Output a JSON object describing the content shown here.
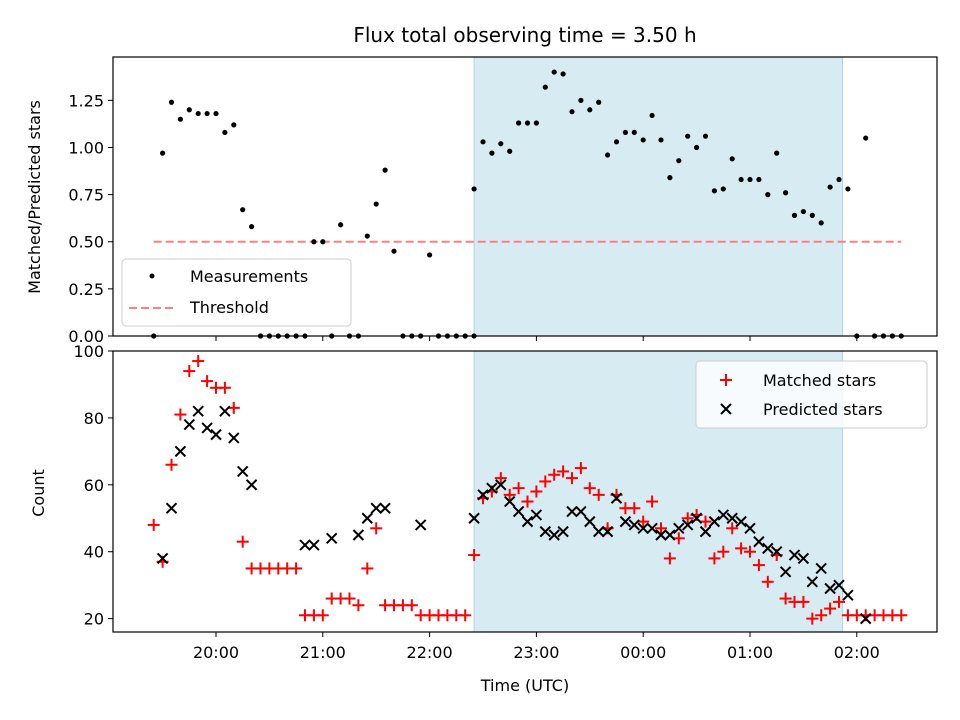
{
  "chart_data": [
    {
      "type": "scatter",
      "title": "Flux total observing time = 3.50 h",
      "xlabel": "",
      "ylabel": "Matched/Predicted stars",
      "ylim": [
        0,
        1.48
      ],
      "yticks": [
        "0.00",
        "0.25",
        "0.50",
        "0.75",
        "1.00",
        "1.25"
      ],
      "xticks_hidden": true,
      "highlight_span": {
        "start": "22:25",
        "end": "01:52",
        "color": "#add8e6"
      },
      "threshold": {
        "name": "Threshold",
        "value": 0.5,
        "color": "#ff7f7f",
        "from": "19:25",
        "to": "02:25"
      },
      "legend": {
        "placement": "lower-left",
        "entries": [
          "Measurements",
          "Threshold"
        ]
      },
      "series": [
        {
          "name": "Measurements",
          "color": "#000000",
          "points": [
            [
              "19:25",
              0.0
            ],
            [
              "19:30",
              0.97
            ],
            [
              "19:35",
              1.24
            ],
            [
              "19:40",
              1.15
            ],
            [
              "19:45",
              1.2
            ],
            [
              "19:50",
              1.18
            ],
            [
              "19:55",
              1.18
            ],
            [
              "20:00",
              1.18
            ],
            [
              "20:05",
              1.08
            ],
            [
              "20:10",
              1.12
            ],
            [
              "20:15",
              0.67
            ],
            [
              "20:20",
              0.58
            ],
            [
              "20:25",
              0.0
            ],
            [
              "20:30",
              0.0
            ],
            [
              "20:35",
              0.0
            ],
            [
              "20:40",
              0.0
            ],
            [
              "20:45",
              0.0
            ],
            [
              "20:50",
              0.0
            ],
            [
              "20:55",
              0.5
            ],
            [
              "21:00",
              0.5
            ],
            [
              "21:05",
              0.0
            ],
            [
              "21:10",
              0.59
            ],
            [
              "21:15",
              0.0
            ],
            [
              "21:20",
              0.0
            ],
            [
              "21:25",
              0.53
            ],
            [
              "21:30",
              0.7
            ],
            [
              "21:35",
              0.88
            ],
            [
              "21:40",
              0.45
            ],
            [
              "21:45",
              0.0
            ],
            [
              "21:50",
              0.0
            ],
            [
              "21:55",
              0.0
            ],
            [
              "22:00",
              0.43
            ],
            [
              "22:05",
              0.0
            ],
            [
              "22:10",
              0.0
            ],
            [
              "22:15",
              0.0
            ],
            [
              "22:20",
              0.0
            ],
            [
              "22:25",
              0.0
            ],
            [
              "22:25",
              0.78
            ],
            [
              "22:30",
              1.03
            ],
            [
              "22:35",
              0.97
            ],
            [
              "22:40",
              1.02
            ],
            [
              "22:45",
              0.98
            ],
            [
              "22:50",
              1.13
            ],
            [
              "22:55",
              1.13
            ],
            [
              "23:00",
              1.13
            ],
            [
              "23:05",
              1.32
            ],
            [
              "23:10",
              1.4
            ],
            [
              "23:15",
              1.39
            ],
            [
              "23:20",
              1.19
            ],
            [
              "23:25",
              1.25
            ],
            [
              "23:30",
              1.2
            ],
            [
              "23:35",
              1.24
            ],
            [
              "23:40",
              0.96
            ],
            [
              "23:45",
              1.03
            ],
            [
              "23:50",
              1.08
            ],
            [
              "23:55",
              1.08
            ],
            [
              "00:00",
              1.04
            ],
            [
              "00:05",
              1.17
            ],
            [
              "00:10",
              1.04
            ],
            [
              "00:15",
              0.84
            ],
            [
              "00:20",
              0.93
            ],
            [
              "00:25",
              1.06
            ],
            [
              "00:30",
              1.0
            ],
            [
              "00:35",
              1.06
            ],
            [
              "00:40",
              0.77
            ],
            [
              "00:45",
              0.78
            ],
            [
              "00:50",
              0.94
            ],
            [
              "00:55",
              0.83
            ],
            [
              "01:00",
              0.83
            ],
            [
              "01:05",
              0.83
            ],
            [
              "01:10",
              0.75
            ],
            [
              "01:15",
              0.97
            ],
            [
              "01:20",
              0.76
            ],
            [
              "01:25",
              0.64
            ],
            [
              "01:30",
              0.66
            ],
            [
              "01:35",
              0.64
            ],
            [
              "01:40",
              0.6
            ],
            [
              "01:45",
              0.79
            ],
            [
              "01:50",
              0.83
            ],
            [
              "01:55",
              0.78
            ],
            [
              "02:00",
              0.0
            ],
            [
              "02:05",
              1.05
            ],
            [
              "02:10",
              0.0
            ],
            [
              "02:15",
              0.0
            ],
            [
              "02:20",
              0.0
            ],
            [
              "02:25",
              0.0
            ]
          ]
        }
      ]
    },
    {
      "type": "scatter",
      "title": "",
      "xlabel": "Time (UTC)",
      "ylabel": "Count",
      "ylim": [
        16,
        100
      ],
      "yticks": [
        "20",
        "40",
        "60",
        "80",
        "100"
      ],
      "xticks": [
        "20:00",
        "21:00",
        "22:00",
        "23:00",
        "00:00",
        "01:00",
        "02:00"
      ],
      "highlight_span": {
        "start": "22:25",
        "end": "01:52",
        "color": "#add8e6"
      },
      "legend": {
        "placement": "upper-right",
        "entries": [
          "Matched stars",
          "Predicted stars"
        ]
      },
      "series": [
        {
          "name": "Matched stars",
          "marker": "plus",
          "color": "#ff0000",
          "points": [
            [
              "19:25",
              48
            ],
            [
              "19:30",
              37
            ],
            [
              "19:35",
              66
            ],
            [
              "19:40",
              81
            ],
            [
              "19:45",
              94
            ],
            [
              "19:50",
              97
            ],
            [
              "19:55",
              91
            ],
            [
              "20:00",
              89
            ],
            [
              "20:05",
              89
            ],
            [
              "20:10",
              83
            ],
            [
              "20:15",
              43
            ],
            [
              "20:20",
              35
            ],
            [
              "20:25",
              35
            ],
            [
              "20:30",
              35
            ],
            [
              "20:35",
              35
            ],
            [
              "20:40",
              35
            ],
            [
              "20:45",
              35
            ],
            [
              "20:50",
              21
            ],
            [
              "20:55",
              21
            ],
            [
              "21:00",
              21
            ],
            [
              "21:05",
              26
            ],
            [
              "21:10",
              26
            ],
            [
              "21:15",
              26
            ],
            [
              "21:20",
              24
            ],
            [
              "21:25",
              35
            ],
            [
              "21:30",
              47
            ],
            [
              "21:35",
              24
            ],
            [
              "21:40",
              24
            ],
            [
              "21:45",
              24
            ],
            [
              "21:50",
              24
            ],
            [
              "21:55",
              21
            ],
            [
              "22:00",
              21
            ],
            [
              "22:05",
              21
            ],
            [
              "22:10",
              21
            ],
            [
              "22:15",
              21
            ],
            [
              "22:20",
              21
            ],
            [
              "22:25",
              39
            ],
            [
              "22:30",
              56
            ],
            [
              "22:35",
              58
            ],
            [
              "22:40",
              62
            ],
            [
              "22:45",
              57
            ],
            [
              "22:50",
              59
            ],
            [
              "22:55",
              55
            ],
            [
              "23:00",
              58
            ],
            [
              "23:05",
              61
            ],
            [
              "23:10",
              63
            ],
            [
              "23:15",
              64
            ],
            [
              "23:20",
              62
            ],
            [
              "23:25",
              65
            ],
            [
              "23:30",
              59
            ],
            [
              "23:35",
              57
            ],
            [
              "23:40",
              47
            ],
            [
              "23:45",
              57
            ],
            [
              "23:50",
              53
            ],
            [
              "23:55",
              53
            ],
            [
              "00:00",
              49
            ],
            [
              "00:05",
              55
            ],
            [
              "00:10",
              47
            ],
            [
              "00:15",
              38
            ],
            [
              "00:20",
              44
            ],
            [
              "00:25",
              50
            ],
            [
              "00:30",
              51
            ],
            [
              "00:35",
              49
            ],
            [
              "00:40",
              38
            ],
            [
              "00:45",
              40
            ],
            [
              "00:50",
              47
            ],
            [
              "00:55",
              41
            ],
            [
              "01:00",
              40
            ],
            [
              "01:05",
              36
            ],
            [
              "01:10",
              31
            ],
            [
              "01:15",
              39
            ],
            [
              "01:20",
              26
            ],
            [
              "01:25",
              25
            ],
            [
              "01:30",
              25
            ],
            [
              "01:35",
              20
            ],
            [
              "01:40",
              21
            ],
            [
              "01:45",
              23
            ],
            [
              "01:50",
              25
            ],
            [
              "01:55",
              21
            ],
            [
              "02:00",
              21
            ],
            [
              "02:05",
              21
            ],
            [
              "02:10",
              21
            ],
            [
              "02:15",
              21
            ],
            [
              "02:20",
              21
            ],
            [
              "02:25",
              21
            ]
          ]
        },
        {
          "name": "Predicted stars",
          "marker": "x",
          "color": "#000000",
          "points": [
            [
              "19:30",
              38
            ],
            [
              "19:35",
              53
            ],
            [
              "19:40",
              70
            ],
            [
              "19:45",
              78
            ],
            [
              "19:50",
              82
            ],
            [
              "19:55",
              77
            ],
            [
              "20:00",
              75
            ],
            [
              "20:05",
              82
            ],
            [
              "20:10",
              74
            ],
            [
              "20:15",
              64
            ],
            [
              "20:20",
              60
            ],
            [
              "20:50",
              42
            ],
            [
              "20:55",
              42
            ],
            [
              "21:05",
              44
            ],
            [
              "21:20",
              45
            ],
            [
              "21:25",
              50
            ],
            [
              "21:30",
              53
            ],
            [
              "21:35",
              53
            ],
            [
              "21:55",
              48
            ],
            [
              "22:25",
              50
            ],
            [
              "22:30",
              57
            ],
            [
              "22:35",
              59
            ],
            [
              "22:40",
              60
            ],
            [
              "22:45",
              55
            ],
            [
              "22:50",
              52
            ],
            [
              "22:55",
              49
            ],
            [
              "23:00",
              51
            ],
            [
              "23:05",
              46
            ],
            [
              "23:10",
              45
            ],
            [
              "23:15",
              46
            ],
            [
              "23:20",
              52
            ],
            [
              "23:25",
              52
            ],
            [
              "23:30",
              49
            ],
            [
              "23:35",
              46
            ],
            [
              "23:40",
              46
            ],
            [
              "23:45",
              56
            ],
            [
              "23:50",
              49
            ],
            [
              "23:55",
              48
            ],
            [
              "00:00",
              47
            ],
            [
              "00:05",
              47
            ],
            [
              "00:10",
              45
            ],
            [
              "00:15",
              45
            ],
            [
              "00:20",
              47
            ],
            [
              "00:25",
              48
            ],
            [
              "00:30",
              50
            ],
            [
              "00:35",
              46
            ],
            [
              "00:40",
              49
            ],
            [
              "00:45",
              51
            ],
            [
              "00:50",
              50
            ],
            [
              "00:55",
              49
            ],
            [
              "01:00",
              47
            ],
            [
              "01:05",
              43
            ],
            [
              "01:10",
              41
            ],
            [
              "01:15",
              40
            ],
            [
              "01:20",
              34
            ],
            [
              "01:25",
              39
            ],
            [
              "01:30",
              38
            ],
            [
              "01:35",
              31
            ],
            [
              "01:40",
              35
            ],
            [
              "01:45",
              29
            ],
            [
              "01:50",
              30
            ],
            [
              "01:55",
              27
            ],
            [
              "02:05",
              20
            ]
          ]
        }
      ]
    }
  ]
}
